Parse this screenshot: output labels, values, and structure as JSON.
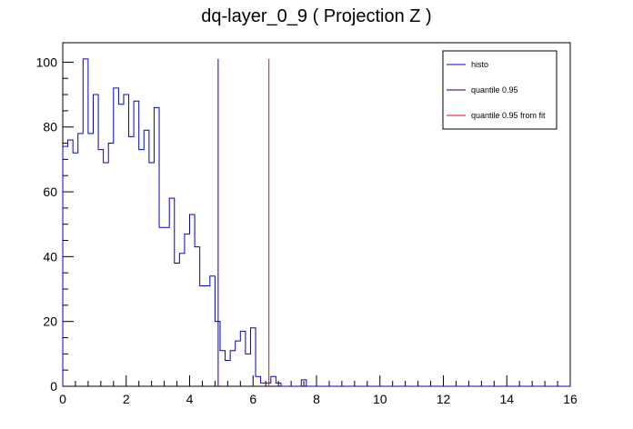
{
  "chart_data": {
    "type": "histogram",
    "title": "dq-layer_0_9 ( Projection Z )",
    "xlabel": "",
    "ylabel": "",
    "xlim": [
      0,
      16
    ],
    "ylim": [
      0,
      106
    ],
    "xticks": [
      "0",
      "2",
      "4",
      "6",
      "8",
      "10",
      "12",
      "14",
      "16"
    ],
    "yticks": [
      "0",
      "20",
      "40",
      "60",
      "80",
      "100"
    ],
    "bin_width": 0.16,
    "bin_start": 0,
    "series": [
      {
        "name": "histo",
        "color": "#0000cc",
        "values": [
          74,
          76,
          72,
          78,
          101,
          78,
          90,
          73,
          69,
          75,
          92,
          87,
          90,
          77,
          88,
          73,
          79,
          69,
          86,
          49,
          49,
          58,
          38,
          41,
          47,
          53,
          43,
          31,
          31,
          34,
          20,
          11,
          8,
          11,
          14,
          17,
          10,
          18,
          3,
          1,
          1,
          3,
          1,
          0,
          0,
          0,
          0,
          2,
          0,
          0,
          0,
          0,
          0,
          0,
          0,
          0,
          0,
          0,
          0,
          0,
          0,
          0,
          0,
          0,
          0,
          0,
          0,
          0,
          0,
          0,
          0,
          0,
          0,
          0,
          0,
          0,
          0,
          0,
          0,
          0,
          0,
          0,
          0,
          0,
          0,
          0,
          0,
          0,
          0,
          0,
          0,
          0,
          0,
          0,
          0,
          0,
          0,
          0,
          0,
          0
        ]
      }
    ],
    "vlines": [
      {
        "name": "quantile 0.95",
        "x": 4.9,
        "y": 101,
        "color": "#0000cc"
      },
      {
        "name": "quantile 0.95 from fit",
        "x": 6.5,
        "y": 101,
        "color": "#ff0000"
      }
    ],
    "legend": {
      "placement": "top-right",
      "entries": [
        {
          "label": "histo",
          "color": "#0000cc"
        },
        {
          "label": "quantile 0.95",
          "color": "#000080"
        },
        {
          "label": "quantile 0.95 from fit",
          "color": "#ff0000"
        }
      ]
    }
  }
}
